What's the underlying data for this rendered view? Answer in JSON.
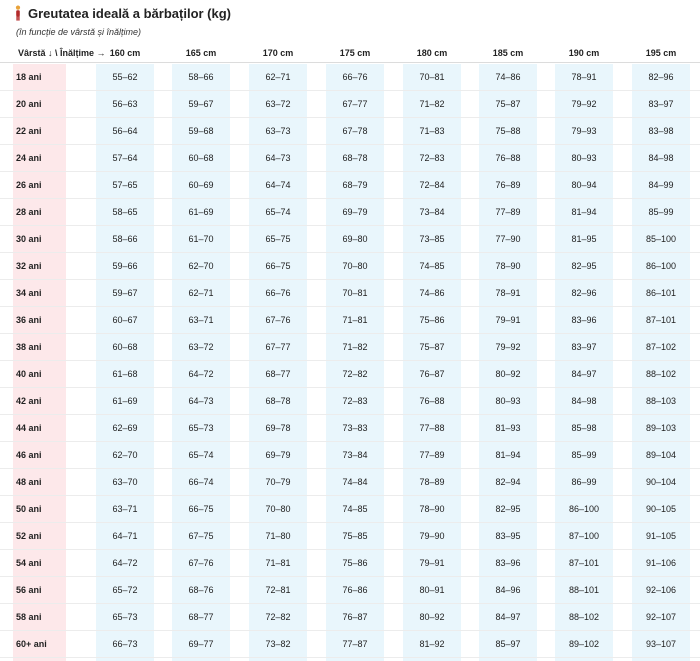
{
  "title": "Greutatea ideală a bărbaților (kg)",
  "title_icon": "person-icon",
  "subtitle": "(în funcție de vârstă și înălțime)",
  "corner_label": "Vârstă ↓ \\ Înălțime →",
  "colors": {
    "age_column_bg": "#fde8ea",
    "value_column_bg": "#e9f6fc",
    "icon_head": "#e8a23a",
    "icon_body": "#b32a2a"
  },
  "table": {
    "columns": [
      "160 cm",
      "165 cm",
      "170 cm",
      "175 cm",
      "180 cm",
      "185 cm",
      "190 cm",
      "195 cm"
    ],
    "rows": [
      {
        "age": "18 ani",
        "values": [
          "55–62",
          "58–66",
          "62–71",
          "66–76",
          "70–81",
          "74–86",
          "78–91",
          "82–96"
        ]
      },
      {
        "age": "20 ani",
        "values": [
          "56–63",
          "59–67",
          "63–72",
          "67–77",
          "71–82",
          "75–87",
          "79–92",
          "83–97"
        ]
      },
      {
        "age": "22 ani",
        "values": [
          "56–64",
          "59–68",
          "63–73",
          "67–78",
          "71–83",
          "75–88",
          "79–93",
          "83–98"
        ]
      },
      {
        "age": "24 ani",
        "values": [
          "57–64",
          "60–68",
          "64–73",
          "68–78",
          "72–83",
          "76–88",
          "80–93",
          "84–98"
        ]
      },
      {
        "age": "26 ani",
        "values": [
          "57–65",
          "60–69",
          "64–74",
          "68–79",
          "72–84",
          "76–89",
          "80–94",
          "84–99"
        ]
      },
      {
        "age": "28 ani",
        "values": [
          "58–65",
          "61–69",
          "65–74",
          "69–79",
          "73–84",
          "77–89",
          "81–94",
          "85–99"
        ]
      },
      {
        "age": "30 ani",
        "values": [
          "58–66",
          "61–70",
          "65–75",
          "69–80",
          "73–85",
          "77–90",
          "81–95",
          "85–100"
        ]
      },
      {
        "age": "32 ani",
        "values": [
          "59–66",
          "62–70",
          "66–75",
          "70–80",
          "74–85",
          "78–90",
          "82–95",
          "86–100"
        ]
      },
      {
        "age": "34 ani",
        "values": [
          "59–67",
          "62–71",
          "66–76",
          "70–81",
          "74–86",
          "78–91",
          "82–96",
          "86–101"
        ]
      },
      {
        "age": "36 ani",
        "values": [
          "60–67",
          "63–71",
          "67–76",
          "71–81",
          "75–86",
          "79–91",
          "83–96",
          "87–101"
        ]
      },
      {
        "age": "38 ani",
        "values": [
          "60–68",
          "63–72",
          "67–77",
          "71–82",
          "75–87",
          "79–92",
          "83–97",
          "87–102"
        ]
      },
      {
        "age": "40 ani",
        "values": [
          "61–68",
          "64–72",
          "68–77",
          "72–82",
          "76–87",
          "80–92",
          "84–97",
          "88–102"
        ]
      },
      {
        "age": "42 ani",
        "values": [
          "61–69",
          "64–73",
          "68–78",
          "72–83",
          "76–88",
          "80–93",
          "84–98",
          "88–103"
        ]
      },
      {
        "age": "44 ani",
        "values": [
          "62–69",
          "65–73",
          "69–78",
          "73–83",
          "77–88",
          "81–93",
          "85–98",
          "89–103"
        ]
      },
      {
        "age": "46 ani",
        "values": [
          "62–70",
          "65–74",
          "69–79",
          "73–84",
          "77–89",
          "81–94",
          "85–99",
          "89–104"
        ]
      },
      {
        "age": "48 ani",
        "values": [
          "63–70",
          "66–74",
          "70–79",
          "74–84",
          "78–89",
          "82–94",
          "86–99",
          "90–104"
        ]
      },
      {
        "age": "50 ani",
        "values": [
          "63–71",
          "66–75",
          "70–80",
          "74–85",
          "78–90",
          "82–95",
          "86–100",
          "90–105"
        ]
      },
      {
        "age": "52 ani",
        "values": [
          "64–71",
          "67–75",
          "71–80",
          "75–85",
          "79–90",
          "83–95",
          "87–100",
          "91–105"
        ]
      },
      {
        "age": "54 ani",
        "values": [
          "64–72",
          "67–76",
          "71–81",
          "75–86",
          "79–91",
          "83–96",
          "87–101",
          "91–106"
        ]
      },
      {
        "age": "56 ani",
        "values": [
          "65–72",
          "68–76",
          "72–81",
          "76–86",
          "80–91",
          "84–96",
          "88–101",
          "92–106"
        ]
      },
      {
        "age": "58 ani",
        "values": [
          "65–73",
          "68–77",
          "72–82",
          "76–87",
          "80–92",
          "84–97",
          "88–102",
          "92–107"
        ]
      },
      {
        "age": "60+ ani",
        "values": [
          "66–73",
          "69–77",
          "73–82",
          "77–87",
          "81–92",
          "85–97",
          "89–102",
          "93–107"
        ]
      }
    ]
  }
}
